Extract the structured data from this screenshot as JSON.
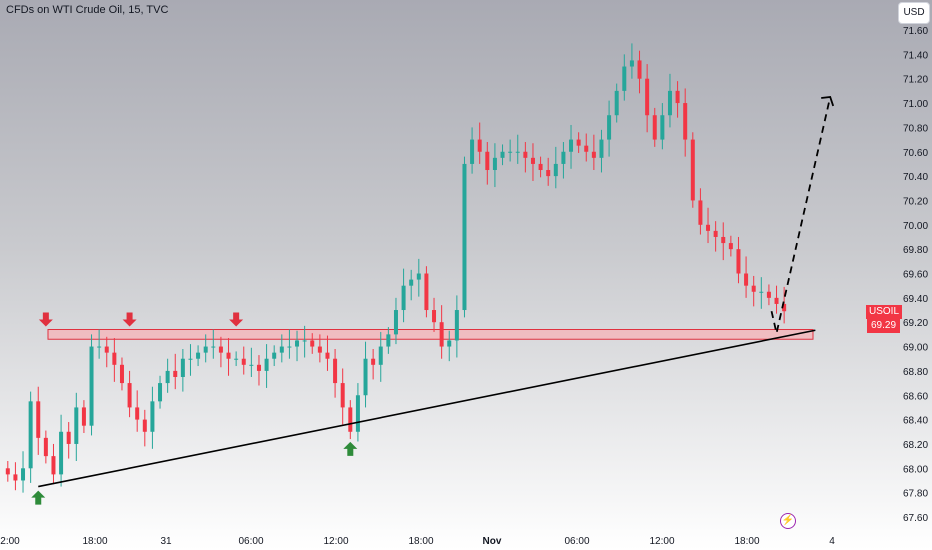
{
  "header": {
    "title": "CFDs on WTI Crude Oil, 15, TVC",
    "currency": "USD"
  },
  "price_tag": {
    "symbol": "USOIL",
    "value": "69.29",
    "color": "#f23645"
  },
  "colors": {
    "up": "#26a69a",
    "down": "#f23645",
    "zone_fill": "#f7b3b8",
    "zone_border": "#e0313f",
    "arrow_down": "#e0313f",
    "arrow_up": "#2e8b3a",
    "trendline": "#000000"
  },
  "icons": {
    "alert": "lightning-icon"
  },
  "chart_data": {
    "type": "candlestick",
    "title": "CFDs on WTI Crude Oil, 15, TVC",
    "ylim": [
      67.55,
      71.72
    ],
    "y_ticks": [
      "71.60",
      "71.40",
      "71.20",
      "71.00",
      "70.80",
      "70.60",
      "70.40",
      "70.20",
      "70.00",
      "69.80",
      "69.60",
      "69.40",
      "69.20",
      "69.00",
      "68.80",
      "68.60",
      "68.40",
      "68.20",
      "68.00",
      "67.80",
      "67.60"
    ],
    "x_ticks": [
      "2:00",
      "18:00",
      "31",
      "06:00",
      "12:00",
      "18:00",
      "Nov",
      "06:00",
      "12:00",
      "18:00",
      "4"
    ],
    "x_tick_bold": [
      "Nov"
    ],
    "grid": false,
    "series": [
      {
        "close": [
          67.95,
          67.9,
          68.0,
          68.55,
          68.25,
          68.1,
          67.95,
          68.3,
          68.2,
          68.5,
          68.35,
          69.0,
          69.0,
          68.95,
          68.85,
          68.7,
          68.5,
          68.4,
          68.3,
          68.55,
          68.7,
          68.8,
          68.75,
          68.9,
          68.9,
          68.95,
          69.0,
          69.0,
          68.95,
          68.9,
          68.9,
          68.85,
          68.85,
          68.8,
          68.9,
          68.95,
          69.0,
          69.0,
          69.05,
          69.05,
          69.0,
          68.95,
          68.9,
          68.7,
          68.5,
          68.3,
          68.6,
          68.9,
          68.85,
          69.0,
          69.1,
          69.3,
          69.5,
          69.55,
          69.6,
          69.3,
          69.2,
          69.0,
          69.05,
          69.3,
          70.5,
          70.7,
          70.6,
          70.45,
          70.55,
          70.6,
          70.6,
          70.6,
          70.55,
          70.5,
          70.45,
          70.4,
          70.5,
          70.6,
          70.7,
          70.65,
          70.6,
          70.55,
          70.7,
          70.9,
          71.1,
          71.3,
          71.35,
          71.2,
          70.9,
          70.7,
          70.9,
          71.1,
          71.0,
          70.7,
          70.2,
          70.0,
          69.95,
          69.9,
          69.85,
          69.8,
          69.6,
          69.5,
          69.45,
          69.45,
          69.4,
          69.35,
          69.29
        ]
      }
    ],
    "annotations": {
      "resistance_zone": [
        69.06,
        69.14
      ],
      "trendline": [
        {
          "i": 4,
          "y": 67.85
        },
        {
          "i": 104,
          "y": 69.13
        }
      ],
      "projection": [
        {
          "i": 101,
          "y": 69.11
        },
        {
          "i": 107,
          "y": 71.05
        }
      ],
      "down_arrows_at": [
        5,
        16,
        30
      ],
      "up_arrows_at": [
        4,
        45
      ]
    }
  }
}
